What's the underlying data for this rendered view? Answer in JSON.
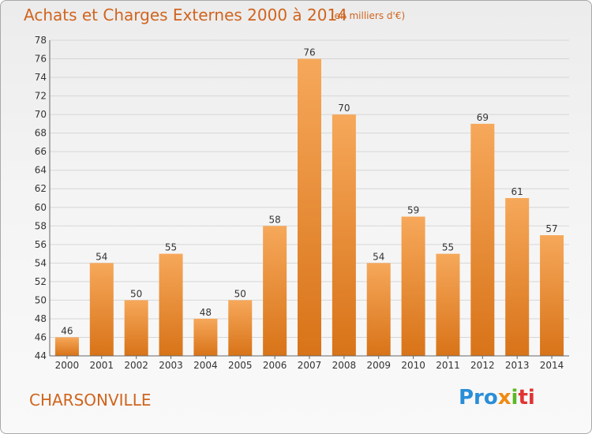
{
  "header": {
    "title": "Achats et Charges Externes 2000 à 2014",
    "unit": "(en milliers d'€)"
  },
  "footer": {
    "place": "CHARSONVILLE",
    "logo": [
      "Pro",
      "x",
      "i",
      "ti"
    ]
  },
  "colors": {
    "bar_light": "#f6a85a",
    "bar_dark": "#d87318",
    "text_accent": "#d0641e"
  },
  "chart_data": {
    "type": "bar",
    "title": "Achats et Charges Externes 2000 à 2014",
    "subtitle": "(en milliers d'€)",
    "xlabel": "",
    "ylabel": "",
    "categories": [
      "2000",
      "2001",
      "2002",
      "2003",
      "2004",
      "2005",
      "2006",
      "2007",
      "2008",
      "2009",
      "2010",
      "2011",
      "2012",
      "2013",
      "2014"
    ],
    "values": [
      46,
      54,
      50,
      55,
      48,
      50,
      58,
      76,
      70,
      54,
      59,
      55,
      69,
      61,
      57
    ],
    "ylim": [
      44,
      78
    ],
    "yticks": [
      44,
      46,
      48,
      50,
      52,
      54,
      56,
      58,
      60,
      62,
      64,
      66,
      68,
      70,
      72,
      74,
      76,
      78
    ],
    "grid": true,
    "legend": "none"
  }
}
